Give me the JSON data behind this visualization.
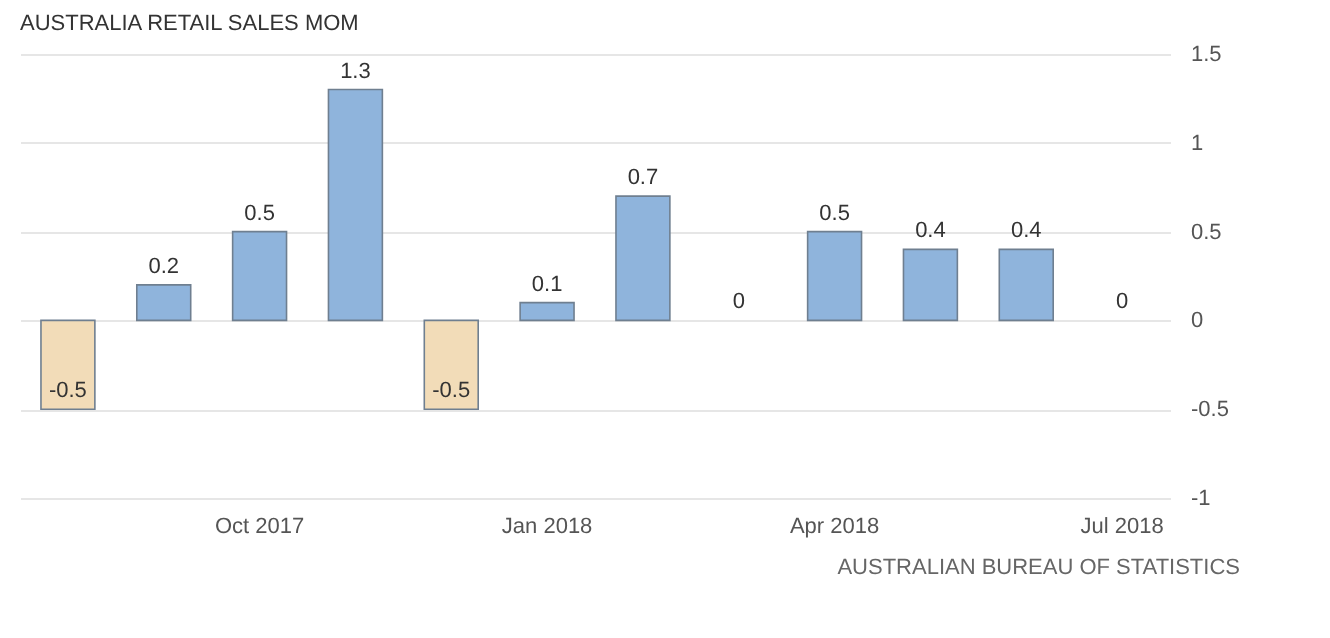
{
  "chart_data": {
    "type": "bar",
    "title": "AUSTRALIA RETAIL SALES MOM",
    "categories": [
      null,
      null,
      "Oct 2017",
      null,
      null,
      "Jan 2018",
      null,
      null,
      "Apr 2018",
      null,
      null,
      "Jul 2018"
    ],
    "values": [
      -0.5,
      0.2,
      0.5,
      1.3,
      -0.5,
      0.1,
      0.7,
      0,
      0.5,
      0.4,
      0.4,
      0
    ],
    "colors": [
      "#f2dcb8",
      "#8fb4dc",
      "#8fb4dc",
      "#8fb4dc",
      "#f2dcb8",
      "#8fb4dc",
      "#8fb4dc",
      "#8fb4dc",
      "#8fb4dc",
      "#8fb4dc",
      "#8fb4dc",
      "#8fb4dc"
    ],
    "ylim": [
      -1,
      1.5
    ],
    "yticks": [
      -1,
      -0.5,
      0,
      0.5,
      1,
      1.5
    ],
    "grid": "y",
    "data_labels": true,
    "annotations": [
      "AUSTRALIAN BUREAU OF STATISTICS"
    ]
  }
}
